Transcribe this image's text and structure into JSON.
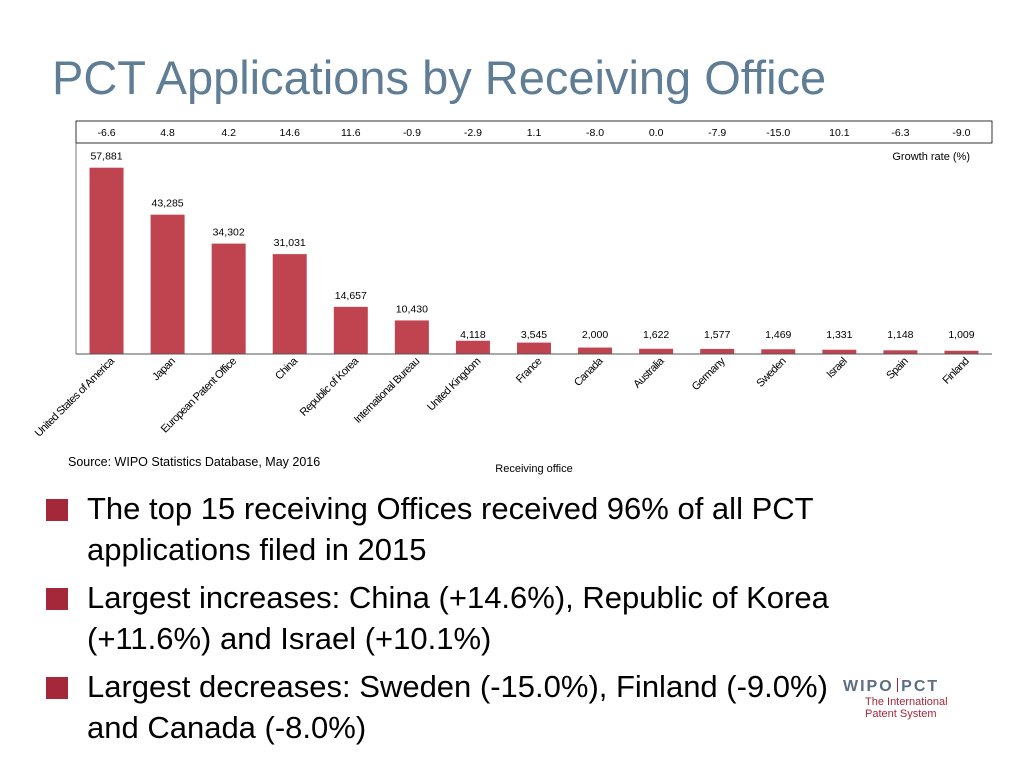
{
  "slide": {
    "title": "PCT Applications by Receiving Office",
    "source": "Source: WIPO Statistics Database, May 2016",
    "bullets": [
      "The top 15 receiving Offices received 96% of all PCT applications filed in 2015",
      "Largest increases:  China (+14.6%), Republic of Korea (+11.6%) and Israel (+10.1%)",
      "Largest decreases:  Sweden (-15.0%), Finland (-9.0%) and Canada (-8.0%)"
    ],
    "logo": {
      "left": "WIPO",
      "right": "PCT",
      "line1": "The International",
      "line2": "Patent System"
    },
    "accent_color": "#a5283a",
    "title_color": "#5f7d95"
  },
  "chart_data": {
    "type": "bar",
    "xlabel": "Receiving office",
    "growth_label": "Growth rate (%)",
    "bar_color": "#c0444f",
    "categories": [
      "United States of America",
      "Japan",
      "European Patent Office",
      "China",
      "Republic of Korea",
      "International Bureau",
      "United Kingdom",
      "France",
      "Canada",
      "Australia",
      "Germany",
      "Sweden",
      "Israel",
      "Spain",
      "Finland"
    ],
    "values": [
      57881,
      43285,
      34302,
      31031,
      14657,
      10430,
      4118,
      3545,
      2000,
      1622,
      1577,
      1469,
      1331,
      1148,
      1009
    ],
    "value_labels": [
      "57,881",
      "43,285",
      "34,302",
      "31,031",
      "14,657",
      "10,430",
      "4,118",
      "3,545",
      "2,000",
      "1,622",
      "1,577",
      "1,469",
      "1,331",
      "1,148",
      "1,009"
    ],
    "growth_rates": [
      "-6.6",
      "4.8",
      "4.2",
      "14.6",
      "11.6",
      "-0.9",
      "-2.9",
      "1.1",
      "-8.0",
      "0.0",
      "-7.9",
      "-15.0",
      "10.1",
      "-6.3",
      "-9.0"
    ],
    "ylim": [
      0,
      64000
    ],
    "grid": false
  }
}
